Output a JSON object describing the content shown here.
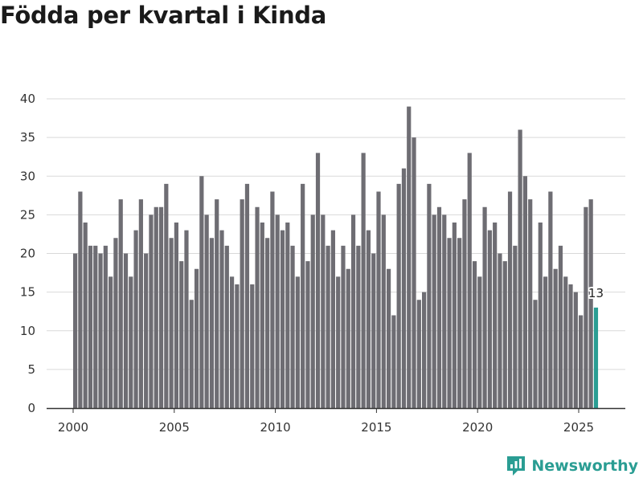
{
  "page": {
    "title": "Födda per kvartal i Kinda",
    "brand": "Newsworthy"
  },
  "colors": {
    "bar": "#6e6d73",
    "highlight": "#2a9d93",
    "grid": "#d9d9d9",
    "axis": "#333333",
    "brand": "#2a9d93"
  },
  "chart_data": {
    "type": "bar",
    "title": "Födda per kvartal i Kinda",
    "xlabel": "",
    "ylabel": "",
    "ylim": [
      0,
      40
    ],
    "yticks": [
      0,
      5,
      10,
      15,
      20,
      25,
      30,
      35,
      40
    ],
    "xticks": [
      2000,
      2005,
      2010,
      2015,
      2020,
      2025
    ],
    "start_year": 2000,
    "periods_per_year": 4,
    "values": [
      20,
      28,
      24,
      21,
      21,
      20,
      21,
      17,
      22,
      27,
      20,
      17,
      23,
      27,
      20,
      25,
      26,
      26,
      29,
      22,
      24,
      19,
      23,
      14,
      18,
      30,
      25,
      22,
      27,
      23,
      21,
      17,
      16,
      27,
      29,
      16,
      26,
      24,
      22,
      28,
      25,
      23,
      24,
      21,
      17,
      29,
      19,
      25,
      33,
      25,
      21,
      23,
      17,
      21,
      18,
      25,
      21,
      33,
      23,
      20,
      28,
      25,
      18,
      12,
      29,
      31,
      39,
      35,
      14,
      15,
      29,
      25,
      26,
      25,
      22,
      24,
      22,
      27,
      33,
      19,
      17,
      26,
      23,
      24,
      20,
      19,
      28,
      21,
      36,
      30,
      27,
      14,
      24,
      17,
      28,
      18,
      21,
      17,
      16,
      15,
      12,
      26,
      27,
      13
    ],
    "highlight_last": true,
    "highlight_label": "13"
  }
}
